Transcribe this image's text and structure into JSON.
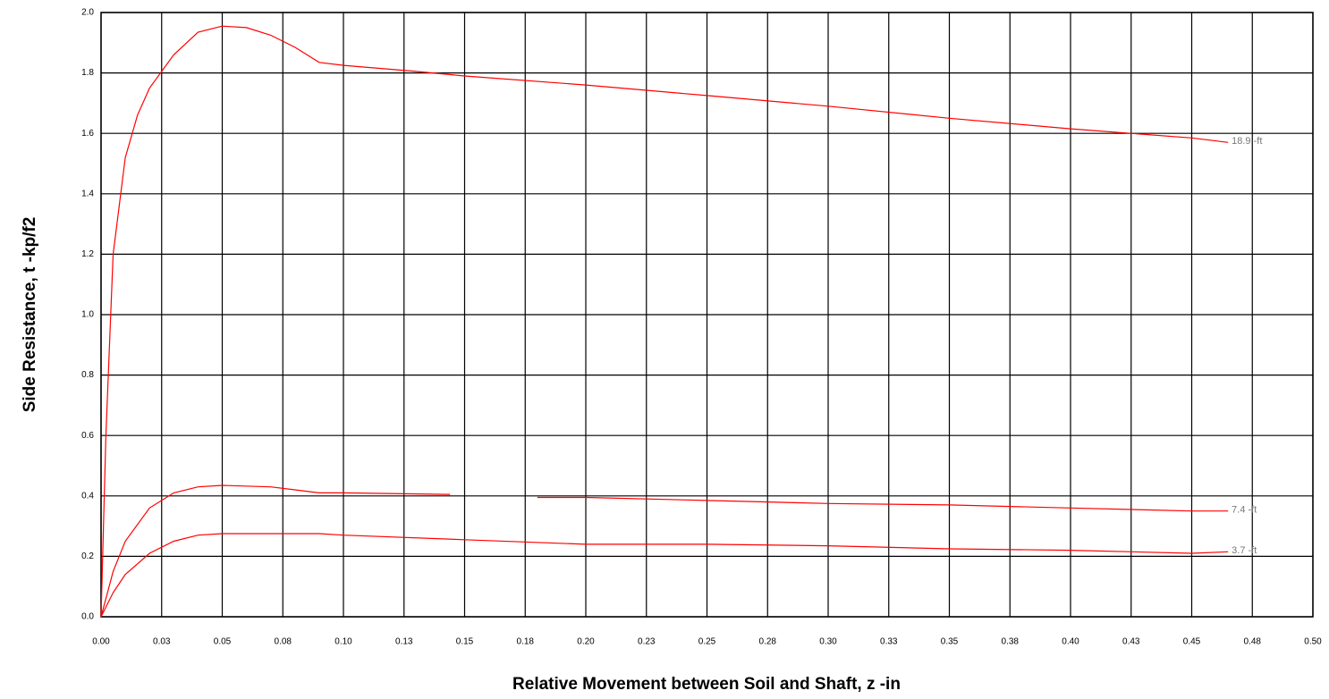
{
  "chart_data": {
    "type": "line",
    "xlabel": "Relative Movement between Soil and Shaft, z -in",
    "ylabel": "Side Resistance, t -kp/f2",
    "xlim": [
      0,
      0.5
    ],
    "ylim": [
      0,
      2.0
    ],
    "xticks": [
      {
        "value": 0,
        "label": "0.00"
      },
      {
        "value": 0.025,
        "label": "0.03"
      },
      0.05,
      {
        "value": 0.075,
        "label": "0.08"
      },
      {
        "value": 0.1,
        "label": "0.10"
      },
      {
        "value": 0.125,
        "label": "0.13"
      },
      0.15,
      {
        "value": 0.175,
        "label": "0.18"
      },
      {
        "value": 0.2,
        "label": "0.20"
      },
      {
        "value": 0.225,
        "label": "0.23"
      },
      0.25,
      {
        "value": 0.275,
        "label": "0.28"
      },
      {
        "value": 0.3,
        "label": "0.30"
      },
      {
        "value": 0.325,
        "label": "0.33"
      },
      0.35,
      {
        "value": 0.375,
        "label": "0.38"
      },
      {
        "value": 0.4,
        "label": "0.40"
      },
      {
        "value": 0.425,
        "label": "0.43"
      },
      0.45,
      {
        "value": 0.475,
        "label": "0.48"
      },
      {
        "value": 0.5,
        "label": "0.50"
      }
    ],
    "yticks": [
      {
        "value": 0,
        "label": "0.0"
      },
      0.2,
      0.4,
      0.6,
      0.8,
      {
        "value": 1,
        "label": "1.0"
      },
      1.2,
      1.4,
      1.6,
      1.8,
      {
        "value": 2,
        "label": "2.0"
      }
    ],
    "grid": true,
    "series": [
      {
        "name": "18.9 -ft",
        "color": "#ff0000",
        "x": [
          0,
          0.002,
          0.005,
          0.01,
          0.015,
          0.02,
          0.03,
          0.04,
          0.05,
          0.06,
          0.07,
          0.08,
          0.09,
          0.1,
          0.13,
          0.15,
          0.2,
          0.25,
          0.3,
          0.35,
          0.4,
          0.45,
          0.465
        ],
        "values": [
          0,
          0.6,
          1.2,
          1.52,
          1.66,
          1.75,
          1.86,
          1.935,
          1.955,
          1.95,
          1.925,
          1.885,
          1.835,
          1.825,
          1.805,
          1.79,
          1.76,
          1.725,
          1.69,
          1.65,
          1.615,
          1.585,
          1.57
        ]
      },
      {
        "name": "7.4 -ft",
        "color": "#ff0000",
        "x": [
          0,
          0.005,
          0.01,
          0.02,
          0.03,
          0.04,
          0.05,
          0.07,
          0.08,
          0.09,
          0.1,
          0.144,
          0.16,
          0.18,
          0.2,
          0.25,
          0.3,
          0.35,
          0.4,
          0.45,
          0.465
        ],
        "values": [
          0,
          0.15,
          0.25,
          0.36,
          0.41,
          0.43,
          0.435,
          0.43,
          0.42,
          0.41,
          0.41,
          0.405,
          null,
          0.395,
          0.395,
          0.385,
          0.375,
          0.37,
          0.36,
          0.35,
          0.35
        ]
      },
      {
        "name": "3.7 -ft",
        "color": "#ff0000",
        "x": [
          0,
          0.005,
          0.01,
          0.02,
          0.03,
          0.04,
          0.05,
          0.07,
          0.09,
          0.1,
          0.15,
          0.2,
          0.25,
          0.3,
          0.35,
          0.4,
          0.45,
          0.465
        ],
        "values": [
          0,
          0.08,
          0.14,
          0.21,
          0.25,
          0.27,
          0.275,
          0.275,
          0.275,
          0.27,
          0.255,
          0.24,
          0.24,
          0.235,
          0.225,
          0.22,
          0.21,
          0.215
        ]
      }
    ]
  }
}
